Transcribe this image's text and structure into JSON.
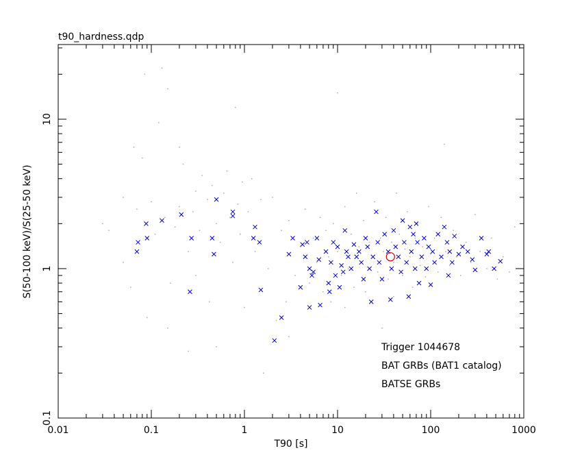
{
  "chart_data": {
    "type": "scatter",
    "title": "t90_hardness.qdp",
    "x_label": "T90 [s]",
    "y_label": "S(50-100 keV)/S(25-50 keV)",
    "x_log": true,
    "y_log": true,
    "xlim": [
      0.01,
      1000
    ],
    "ylim": [
      0.1,
      31.6
    ],
    "xticks": [
      0.01,
      0.1,
      1,
      10,
      100,
      1000
    ],
    "yticks": [
      0.1,
      1,
      10
    ],
    "legend": "lower right",
    "series": [
      {
        "name": "Trigger 1044678",
        "color": "#d00000",
        "marker": "circle",
        "x": [
          37
        ],
        "values": [
          1.2
        ]
      },
      {
        "name": "BAT GRBs (BAT1 catalog)",
        "color": "#0000cc",
        "marker": "cross",
        "x": [
          0.07,
          0.072,
          0.088,
          0.09,
          0.13,
          0.21,
          0.26,
          0.27,
          0.45,
          0.47,
          0.5,
          0.75,
          0.75,
          1.25,
          1.3,
          1.45,
          1.5,
          2.1,
          2.5,
          3.0,
          3.3,
          4.0,
          4.2,
          4.5,
          4.7,
          5.0,
          5.0,
          5.3,
          5.5,
          6.0,
          6.3,
          6.5,
          7.5,
          8,
          8.2,
          8.5,
          9,
          9.5,
          10,
          10.5,
          11,
          11.5,
          12,
          12.5,
          13,
          14,
          15,
          16,
          17,
          18,
          19,
          20,
          21,
          22,
          23,
          24,
          26,
          27,
          28,
          30,
          32,
          35,
          37,
          38,
          40,
          42,
          45,
          48,
          50,
          52,
          55,
          58,
          60,
          62,
          65,
          68,
          70,
          72,
          75,
          80,
          85,
          90,
          95,
          100,
          105,
          110,
          120,
          130,
          140,
          150,
          155,
          160,
          170,
          180,
          200,
          220,
          250,
          280,
          300,
          350,
          400,
          420,
          480,
          560
        ],
        "values": [
          1.3,
          1.5,
          2.0,
          1.6,
          2.1,
          2.3,
          0.7,
          1.6,
          1.6,
          1.25,
          2.9,
          2.4,
          2.25,
          1.6,
          1.9,
          1.5,
          0.72,
          0.33,
          0.47,
          1.25,
          1.6,
          0.75,
          1.45,
          1.2,
          1.5,
          1.0,
          0.55,
          0.9,
          0.95,
          1.6,
          1.15,
          0.57,
          1.3,
          0.8,
          0.7,
          1.1,
          1.5,
          0.9,
          1.4,
          0.75,
          1.05,
          0.95,
          1.8,
          1.3,
          1.2,
          1.0,
          1.45,
          1.2,
          1.3,
          1.1,
          0.85,
          1.6,
          1.4,
          1.0,
          0.6,
          1.2,
          2.4,
          1.5,
          1.1,
          0.85,
          1.7,
          1.3,
          0.62,
          1.0,
          1.8,
          1.4,
          1.2,
          0.95,
          2.1,
          1.5,
          1.1,
          0.65,
          1.9,
          1.3,
          1.7,
          1.0,
          2.0,
          1.5,
          0.8,
          1.2,
          1.6,
          1.0,
          1.4,
          0.78,
          1.3,
          1.1,
          1.7,
          1.2,
          1.9,
          1.5,
          0.9,
          1.3,
          1.1,
          1.65,
          1.25,
          1.4,
          1.3,
          1.15,
          0.98,
          1.6,
          1.25,
          1.3,
          1.0,
          1.12
        ]
      },
      {
        "name": "BATSE GRBs",
        "color": "#aaaaaa",
        "marker": "dot",
        "x": [
          0.03,
          0.035,
          0.05,
          0.05,
          0.06,
          0.065,
          0.07,
          0.08,
          0.085,
          0.09,
          0.1,
          0.11,
          0.12,
          0.13,
          0.14,
          0.15,
          0.16,
          0.18,
          0.2,
          0.2,
          0.22,
          0.25,
          0.28,
          0.3,
          0.3,
          0.33,
          0.35,
          0.4,
          0.42,
          0.45,
          0.5,
          0.55,
          0.6,
          0.65,
          0.7,
          0.75,
          0.8,
          0.85,
          0.9,
          0.95,
          1.0,
          1.1,
          1.2,
          1.3,
          1.5,
          1.6,
          1.8,
          2.0,
          2.2,
          2.5,
          2.8,
          3.0,
          3.5,
          4.0,
          4.5,
          5,
          5.5,
          6,
          6.5,
          7,
          7.5,
          8,
          8.5,
          9,
          10,
          10,
          11,
          12,
          13,
          14,
          15,
          16,
          17,
          18,
          19,
          20,
          22,
          24,
          25,
          27,
          29,
          31,
          33,
          35,
          38,
          40,
          43,
          46,
          50,
          53,
          56,
          60,
          64,
          68,
          72,
          77,
          82,
          88,
          95,
          100,
          110,
          120,
          130,
          140,
          145,
          160,
          175,
          190,
          210,
          240,
          270,
          300,
          340,
          400,
          450,
          520,
          600,
          700,
          800,
          0.15,
          0.5,
          0.25,
          3,
          30,
          40,
          12
        ],
        "values": [
          2.0,
          1.8,
          3.0,
          1.1,
          0.75,
          6.5,
          2.5,
          5.5,
          20,
          0.47,
          2.8,
          1.7,
          9.5,
          22,
          2.2,
          16,
          0.8,
          1.9,
          6.5,
          2.6,
          5.0,
          1.3,
          2.4,
          0.9,
          3.3,
          1.8,
          4.2,
          2.9,
          0.6,
          3.6,
          2.0,
          1.5,
          3.2,
          4.5,
          2.2,
          1.1,
          12,
          2.7,
          1.7,
          3.8,
          0.55,
          2.4,
          4.0,
          1.3,
          2.9,
          0.2,
          1.0,
          3.0,
          0.45,
          1.8,
          0.6,
          2.1,
          0.9,
          1.4,
          2.5,
          0.8,
          1.6,
          1.1,
          2.2,
          0.7,
          1.8,
          1.2,
          0.6,
          2.0,
          15,
          1.3,
          0.9,
          2.6,
          1.0,
          1.7,
          0.75,
          3.2,
          1.4,
          1.1,
          2.1,
          0.7,
          1.5,
          1.2,
          2.8,
          0.95,
          1.6,
          1.3,
          2.2,
          0.85,
          1.5,
          1.1,
          3.2,
          1.7,
          0.9,
          1.35,
          2.4,
          1.2,
          0.75,
          1.6,
          2.0,
          1.05,
          1.4,
          0.88,
          2.6,
          1.25,
          1.6,
          0.95,
          2.2,
          6.8,
          1.3,
          1.05,
          1.8,
          1.2,
          0.9,
          1.5,
          1.1,
          2.3,
          1.3,
          1.0,
          1.6,
          0.85,
          1.2,
          0.95,
          1.9,
          0.4,
          0.3,
          0.28,
          0.35,
          0.4,
          0.65,
          0.55
        ]
      }
    ]
  }
}
